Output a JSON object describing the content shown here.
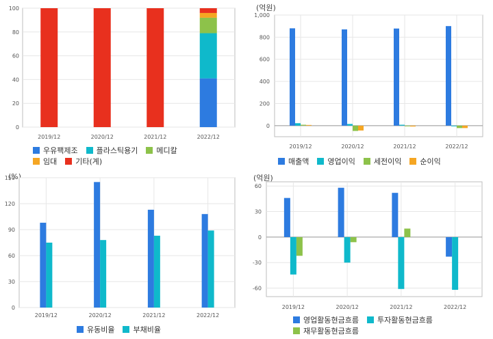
{
  "colors": {
    "blue": "#2d7be0",
    "cyan": "#0fb9cb",
    "green": "#8dc24a",
    "orange": "#f5a623",
    "red": "#e8301e",
    "grid": "#e6e6e6",
    "frame": "#bdbdbd"
  },
  "panels": {
    "composition": {
      "unit": ""
    },
    "earnings": {
      "unit": "(억원)"
    },
    "ratios": {
      "unit": "(%)"
    },
    "cashflow": {
      "unit": "(억원)"
    }
  },
  "chart_data": [
    {
      "id": "composition",
      "type": "bar",
      "stacked": true,
      "categories": [
        "2019/12",
        "2020/12",
        "2021/12",
        "2022/12"
      ],
      "ylim": [
        0,
        100
      ],
      "yticks": [
        0,
        20,
        40,
        60,
        80,
        100
      ],
      "series": [
        {
          "name": "우유팩제조",
          "color": "blue",
          "values": [
            0,
            0,
            0,
            41
          ]
        },
        {
          "name": "플라스틱용기",
          "color": "cyan",
          "values": [
            0,
            0,
            0,
            38
          ]
        },
        {
          "name": "메디칼",
          "color": "green",
          "values": [
            0,
            0,
            0,
            13
          ]
        },
        {
          "name": "임대",
          "color": "orange",
          "values": [
            0,
            0,
            0,
            4
          ]
        },
        {
          "name": "기타(계)",
          "color": "red",
          "values": [
            100,
            100,
            100,
            4
          ]
        }
      ],
      "legend_rows": [
        [
          0,
          1,
          2
        ],
        [
          3,
          4
        ]
      ]
    },
    {
      "id": "earnings",
      "type": "bar",
      "categories": [
        "2019/12",
        "2020/12",
        "2021/12",
        "2022/12"
      ],
      "ylim": [
        -100,
        1000
      ],
      "yticks": [
        0,
        200,
        400,
        600,
        800,
        1000
      ],
      "ytick_labels": [
        "0",
        "200",
        "400",
        "600",
        "800",
        "1,000"
      ],
      "series": [
        {
          "name": "매출액",
          "color": "blue",
          "values": [
            880,
            870,
            878,
            900
          ]
        },
        {
          "name": "영업이익",
          "color": "cyan",
          "values": [
            22,
            15,
            8,
            -6
          ]
        },
        {
          "name": "세전이익",
          "color": "green",
          "values": [
            8,
            -48,
            -5,
            -22
          ]
        },
        {
          "name": "순이익",
          "color": "orange",
          "values": [
            6,
            -44,
            -8,
            -22
          ]
        }
      ],
      "legend_rows": [
        [
          0,
          1,
          2,
          3
        ]
      ]
    },
    {
      "id": "ratios",
      "type": "bar",
      "categories": [
        "2019/12",
        "2020/12",
        "2021/12",
        "2022/12"
      ],
      "ylim": [
        0,
        150
      ],
      "yticks": [
        0,
        30,
        60,
        90,
        120,
        150
      ],
      "series": [
        {
          "name": "유동비율",
          "color": "blue",
          "values": [
            98,
            145,
            113,
            108
          ]
        },
        {
          "name": "부채비율",
          "color": "cyan",
          "values": [
            75,
            78,
            83,
            89
          ]
        }
      ],
      "legend_rows": [
        [
          0,
          1
        ]
      ]
    },
    {
      "id": "cashflow",
      "type": "bar",
      "categories": [
        "2019/12",
        "2020/12",
        "2021/12",
        "2022/12"
      ],
      "ylim": [
        -70,
        65
      ],
      "yticks": [
        -60,
        -30,
        0,
        30,
        60
      ],
      "series": [
        {
          "name": "영업활동현금흐름",
          "color": "blue",
          "values": [
            46,
            58,
            52,
            -23
          ]
        },
        {
          "name": "투자활동현금흐름",
          "color": "cyan",
          "values": [
            -44,
            -30,
            -61,
            -62
          ]
        },
        {
          "name": "재무활동현금흐름",
          "color": "green",
          "values": [
            -22,
            -6,
            10,
            0
          ]
        }
      ],
      "legend_rows": [
        [
          0,
          1
        ],
        [
          2
        ]
      ]
    }
  ]
}
